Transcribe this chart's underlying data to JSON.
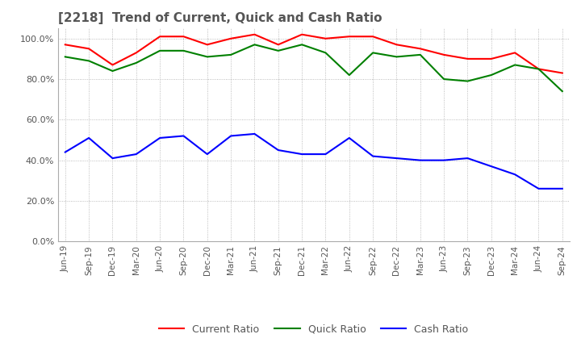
{
  "title": "[2218]  Trend of Current, Quick and Cash Ratio",
  "title_color": "#555555",
  "background_color": "#ffffff",
  "grid_color": "#aaaaaa",
  "labels": [
    "Jun-19",
    "Sep-19",
    "Dec-19",
    "Mar-20",
    "Jun-20",
    "Sep-20",
    "Dec-20",
    "Mar-21",
    "Jun-21",
    "Sep-21",
    "Dec-21",
    "Mar-22",
    "Jun-22",
    "Sep-22",
    "Dec-22",
    "Mar-23",
    "Jun-23",
    "Sep-23",
    "Dec-23",
    "Mar-24",
    "Jun-24",
    "Sep-24"
  ],
  "current_ratio": [
    97,
    95,
    87,
    93,
    101,
    101,
    97,
    100,
    102,
    97,
    102,
    100,
    101,
    101,
    97,
    95,
    92,
    90,
    90,
    93,
    85,
    83
  ],
  "quick_ratio": [
    91,
    89,
    84,
    88,
    94,
    94,
    91,
    92,
    97,
    94,
    97,
    93,
    82,
    93,
    91,
    92,
    80,
    79,
    82,
    87,
    85,
    74
  ],
  "cash_ratio": [
    44,
    51,
    41,
    43,
    51,
    52,
    43,
    52,
    53,
    45,
    43,
    43,
    51,
    42,
    41,
    40,
    40,
    41,
    37,
    33,
    26,
    26
  ],
  "current_color": "#ff0000",
  "quick_color": "#008000",
  "cash_color": "#0000ff",
  "ylim": [
    0,
    105
  ],
  "yticks": [
    0,
    20,
    40,
    60,
    80,
    100
  ],
  "legend_labels": [
    "Current Ratio",
    "Quick Ratio",
    "Cash Ratio"
  ],
  "linewidth": 1.5
}
